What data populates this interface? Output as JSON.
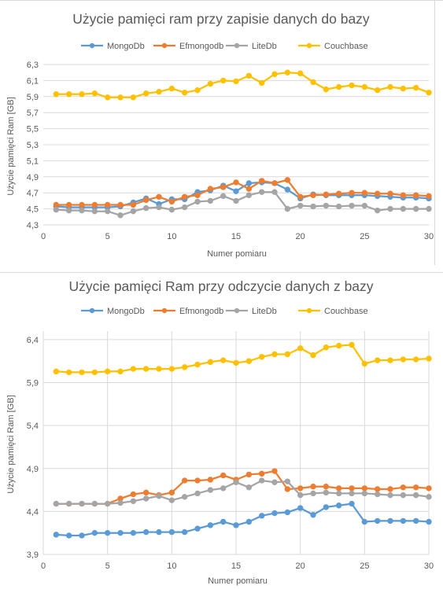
{
  "chart_data": [
    {
      "type": "line",
      "title": "Użycie pamięci ram przy zapisie danych do bazy",
      "xlabel": "Numer pomiaru",
      "ylabel": "Użycie pamięci Ram [GB]",
      "x": [
        1,
        2,
        3,
        4,
        5,
        6,
        7,
        8,
        9,
        10,
        11,
        12,
        13,
        14,
        15,
        16,
        17,
        18,
        19,
        20,
        21,
        22,
        23,
        24,
        25,
        26,
        27,
        28,
        29,
        30
      ],
      "xlim": [
        0,
        30
      ],
      "xticks": [
        "0",
        "5",
        "10",
        "15",
        "20",
        "25",
        "30"
      ],
      "ylim": [
        4.3,
        6.3
      ],
      "yticks": [
        "4,3",
        "4,5",
        "4,7",
        "4,9",
        "5,1",
        "5,3",
        "5,5",
        "5,7",
        "5,9",
        "6,1",
        "6,3"
      ],
      "grid": "horizontal",
      "legend_position": "top",
      "series": [
        {
          "name": "MongoDb",
          "color": "#5b9bd5",
          "values": [
            4.53,
            4.52,
            4.52,
            4.52,
            4.52,
            4.53,
            4.58,
            4.63,
            4.56,
            4.62,
            4.62,
            4.71,
            4.73,
            4.79,
            4.72,
            4.82,
            4.83,
            4.82,
            4.74,
            4.63,
            4.68,
            4.67,
            4.67,
            4.67,
            4.67,
            4.66,
            4.65,
            4.64,
            4.64,
            4.63
          ]
        },
        {
          "name": "Efmongodb",
          "color": "#ed7d31",
          "values": [
            4.55,
            4.55,
            4.55,
            4.55,
            4.55,
            4.55,
            4.55,
            4.61,
            4.65,
            4.59,
            4.65,
            4.67,
            4.75,
            4.77,
            4.83,
            4.75,
            4.85,
            4.82,
            4.86,
            4.65,
            4.67,
            4.68,
            4.69,
            4.7,
            4.7,
            4.69,
            4.69,
            4.67,
            4.67,
            4.66
          ]
        },
        {
          "name": "LiteDb",
          "color": "#a5a5a5",
          "values": [
            4.49,
            4.48,
            4.48,
            4.47,
            4.47,
            4.42,
            4.47,
            4.51,
            4.52,
            4.49,
            4.52,
            4.59,
            4.6,
            4.66,
            4.6,
            4.67,
            4.71,
            4.71,
            4.5,
            4.54,
            4.53,
            4.54,
            4.53,
            4.54,
            4.54,
            4.48,
            4.5,
            4.5,
            4.5,
            4.5
          ]
        },
        {
          "name": "Couchbase",
          "color": "#ffc000",
          "values": [
            5.93,
            5.93,
            5.93,
            5.94,
            5.89,
            5.89,
            5.89,
            5.94,
            5.96,
            6.0,
            5.95,
            5.98,
            6.06,
            6.1,
            6.09,
            6.16,
            6.07,
            6.18,
            6.2,
            6.19,
            6.08,
            5.99,
            6.02,
            6.04,
            6.02,
            5.98,
            6.02,
            6.0,
            6.01,
            5.95
          ]
        }
      ]
    },
    {
      "type": "line",
      "title": "Użycie pamięci Ram przy odczycie danych z bazy",
      "xlabel": "Numer pomiaru",
      "ylabel": "Użycie pamięci Ram [GB]",
      "x": [
        1,
        2,
        3,
        4,
        5,
        6,
        7,
        8,
        9,
        10,
        11,
        12,
        13,
        14,
        15,
        16,
        17,
        18,
        19,
        20,
        21,
        22,
        23,
        24,
        25,
        26,
        27,
        28,
        29,
        30
      ],
      "xlim": [
        0,
        30
      ],
      "xticks": [
        "0",
        "5",
        "10",
        "15",
        "20",
        "25",
        "30"
      ],
      "ylim": [
        3.9,
        6.5
      ],
      "yticks": [
        "3,9",
        "4,4",
        "4,9",
        "5,4",
        "5,9",
        "6,4"
      ],
      "grid": "both",
      "legend_position": "top",
      "series": [
        {
          "name": "MongoDb",
          "color": "#5b9bd5",
          "values": [
            4.13,
            4.12,
            4.12,
            4.15,
            4.15,
            4.15,
            4.15,
            4.16,
            4.16,
            4.16,
            4.16,
            4.2,
            4.24,
            4.28,
            4.24,
            4.28,
            4.35,
            4.38,
            4.39,
            4.44,
            4.36,
            4.45,
            4.47,
            4.49,
            4.28,
            4.29,
            4.29,
            4.29,
            4.29,
            4.28
          ]
        },
        {
          "name": "Efmongodb",
          "color": "#ed7d31",
          "values": [
            4.49,
            4.49,
            4.49,
            4.49,
            4.49,
            4.55,
            4.6,
            4.62,
            4.59,
            4.62,
            4.76,
            4.76,
            4.77,
            4.82,
            4.77,
            4.83,
            4.84,
            4.87,
            4.66,
            4.67,
            4.69,
            4.69,
            4.67,
            4.67,
            4.67,
            4.66,
            4.66,
            4.68,
            4.68,
            4.67
          ]
        },
        {
          "name": "LiteDb",
          "color": "#a5a5a5",
          "values": [
            4.49,
            4.49,
            4.49,
            4.49,
            4.49,
            4.5,
            4.52,
            4.55,
            4.58,
            4.53,
            4.57,
            4.61,
            4.65,
            4.67,
            4.74,
            4.68,
            4.76,
            4.74,
            4.75,
            4.59,
            4.61,
            4.62,
            4.61,
            4.61,
            4.61,
            4.6,
            4.59,
            4.59,
            4.59,
            4.57
          ]
        },
        {
          "name": "Couchbase",
          "color": "#ffc000",
          "values": [
            6.03,
            6.02,
            6.02,
            6.02,
            6.03,
            6.03,
            6.06,
            6.06,
            6.06,
            6.06,
            6.08,
            6.11,
            6.14,
            6.16,
            6.13,
            6.15,
            6.2,
            6.23,
            6.23,
            6.3,
            6.22,
            6.31,
            6.33,
            6.34,
            6.12,
            6.16,
            6.16,
            6.17,
            6.17,
            6.18
          ]
        }
      ]
    }
  ]
}
